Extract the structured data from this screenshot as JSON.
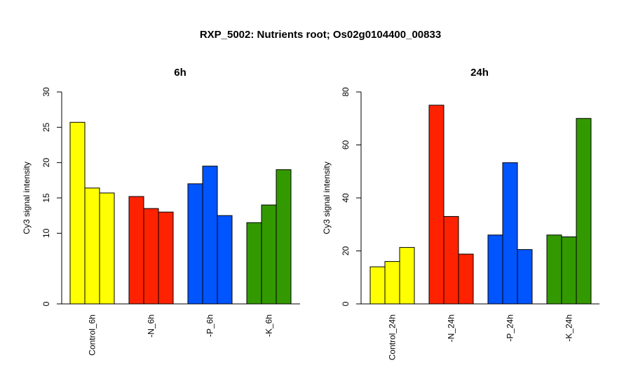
{
  "page": {
    "title": "RXP_5002: Nutrients root; Os02g0104400_00833"
  },
  "colors": {
    "control": "#ffff00",
    "minus_n": "#ff2200",
    "minus_p": "#0055ff",
    "minus_k": "#339900"
  },
  "chart_data": [
    {
      "type": "bar",
      "title": "6h",
      "xlabel": "",
      "ylabel": "Cy3 signal intensity",
      "ylim": [
        0,
        30
      ],
      "yticks": [
        0,
        10,
        15,
        20,
        25,
        30
      ],
      "grid": false,
      "groups": [
        {
          "label": "Control_6h",
          "color": "#ffff00",
          "values": [
            25.7,
            16.4,
            15.7
          ]
        },
        {
          "label": "-N_6h",
          "color": "#ff2200",
          "values": [
            15.2,
            13.5,
            13.0
          ]
        },
        {
          "label": "-P_6h",
          "color": "#0055ff",
          "values": [
            17.0,
            19.5,
            12.5
          ]
        },
        {
          "label": "-K_6h",
          "color": "#339900",
          "values": [
            11.5,
            14.0,
            19.0
          ]
        }
      ]
    },
    {
      "type": "bar",
      "title": "24h",
      "xlabel": "",
      "ylabel": "Cy3 signal intensity",
      "ylim": [
        0,
        80
      ],
      "yticks": [
        0,
        20,
        40,
        60,
        80
      ],
      "grid": false,
      "groups": [
        {
          "label": "Control_24h",
          "color": "#ffff00",
          "values": [
            14.0,
            16.0,
            21.3
          ]
        },
        {
          "label": "-N_24h",
          "color": "#ff2200",
          "values": [
            75.0,
            33.0,
            18.8
          ]
        },
        {
          "label": "-P_24h",
          "color": "#0055ff",
          "values": [
            26.0,
            53.3,
            20.5
          ]
        },
        {
          "label": "-K_24h",
          "color": "#339900",
          "values": [
            26.0,
            25.3,
            70.0
          ]
        }
      ]
    }
  ]
}
